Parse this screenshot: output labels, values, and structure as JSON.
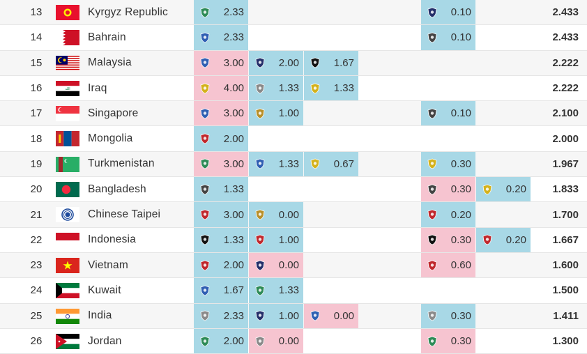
{
  "rows": [
    {
      "rank": "13",
      "country": "Kyrgyz Republic",
      "flag": "kyrgyz-flag",
      "left": [
        {
          "v": "2.33",
          "c": "blue",
          "logo": "club-crest-green"
        },
        null,
        null
      ],
      "right": [
        {
          "v": "0.10",
          "c": "blue",
          "logo": "club-crest-navy"
        },
        null
      ],
      "total": "2.433"
    },
    {
      "rank": "14",
      "country": "Bahrain",
      "flag": "bahrain-flag",
      "left": [
        {
          "v": "2.33",
          "c": "blue",
          "logo": "club-crest-blue"
        },
        null,
        null
      ],
      "right": [
        {
          "v": "0.10",
          "c": "blue",
          "logo": "club-crest-dark"
        },
        null
      ],
      "total": "2.433"
    },
    {
      "rank": "15",
      "country": "Malaysia",
      "flag": "malaysia-flag",
      "left": [
        {
          "v": "3.00",
          "c": "pink",
          "logo": "club-crest-blue"
        },
        {
          "v": "2.00",
          "c": "blue",
          "logo": "club-crest-navy"
        },
        {
          "v": "1.67",
          "c": "blue",
          "logo": "club-crest-black"
        }
      ],
      "right": [
        null,
        null
      ],
      "total": "2.222"
    },
    {
      "rank": "16",
      "country": "Iraq",
      "flag": "iraq-flag",
      "left": [
        {
          "v": "4.00",
          "c": "pink",
          "logo": "club-crest-yellow"
        },
        {
          "v": "1.33",
          "c": "blue",
          "logo": "club-crest-white"
        },
        {
          "v": "1.33",
          "c": "blue",
          "logo": "club-crest-yellow"
        }
      ],
      "right": [
        null,
        null
      ],
      "total": "2.222"
    },
    {
      "rank": "17",
      "country": "Singapore",
      "flag": "singapore-flag",
      "left": [
        {
          "v": "3.00",
          "c": "pink",
          "logo": "club-crest-blue"
        },
        {
          "v": "1.00",
          "c": "blue",
          "logo": "club-crest-gold"
        },
        null
      ],
      "right": [
        {
          "v": "0.10",
          "c": "blue",
          "logo": "club-crest-dark"
        },
        null
      ],
      "total": "2.100"
    },
    {
      "rank": "18",
      "country": "Mongolia",
      "flag": "mongolia-flag",
      "left": [
        {
          "v": "2.00",
          "c": "blue",
          "logo": "club-crest-red"
        },
        null,
        null
      ],
      "right": [
        null,
        null
      ],
      "total": "2.000"
    },
    {
      "rank": "19",
      "country": "Turkmenistan",
      "flag": "turkmenistan-flag",
      "left": [
        {
          "v": "3.00",
          "c": "pink",
          "logo": "club-crest-green"
        },
        {
          "v": "1.33",
          "c": "blue",
          "logo": "club-crest-blue"
        },
        {
          "v": "0.67",
          "c": "blue",
          "logo": "club-crest-yellow"
        }
      ],
      "right": [
        {
          "v": "0.30",
          "c": "blue",
          "logo": "club-crest-yellow"
        },
        null
      ],
      "total": "1.967"
    },
    {
      "rank": "20",
      "country": "Bangladesh",
      "flag": "bangladesh-flag",
      "left": [
        {
          "v": "1.33",
          "c": "blue",
          "logo": "club-crest-dark"
        },
        null,
        null
      ],
      "right": [
        {
          "v": "0.30",
          "c": "pink",
          "logo": "club-crest-dark"
        },
        {
          "v": "0.20",
          "c": "blue",
          "logo": "club-crest-yellow"
        }
      ],
      "total": "1.833"
    },
    {
      "rank": "21",
      "country": "Chinese Taipei",
      "flag": "chinese-taipei-flag",
      "left": [
        {
          "v": "3.00",
          "c": "blue",
          "logo": "club-crest-red"
        },
        {
          "v": "0.00",
          "c": "blue",
          "logo": "club-crest-gold"
        },
        null
      ],
      "right": [
        {
          "v": "0.20",
          "c": "blue",
          "logo": "club-crest-red"
        },
        null
      ],
      "total": "1.700"
    },
    {
      "rank": "22",
      "country": "Indonesia",
      "flag": "indonesia-flag",
      "left": [
        {
          "v": "1.33",
          "c": "blue",
          "logo": "club-crest-black"
        },
        {
          "v": "1.00",
          "c": "blue",
          "logo": "club-crest-red"
        },
        null
      ],
      "right": [
        {
          "v": "0.30",
          "c": "pink",
          "logo": "club-crest-black"
        },
        {
          "v": "0.20",
          "c": "blue",
          "logo": "club-crest-red"
        }
      ],
      "total": "1.667"
    },
    {
      "rank": "23",
      "country": "Vietnam",
      "flag": "vietnam-flag",
      "left": [
        {
          "v": "2.00",
          "c": "blue",
          "logo": "club-crest-red"
        },
        {
          "v": "0.00",
          "c": "pink",
          "logo": "club-crest-navy"
        },
        null
      ],
      "right": [
        {
          "v": "0.60",
          "c": "pink",
          "logo": "club-crest-red"
        },
        null
      ],
      "total": "1.600"
    },
    {
      "rank": "24",
      "country": "Kuwait",
      "flag": "kuwait-flag",
      "left": [
        {
          "v": "1.67",
          "c": "blue",
          "logo": "club-crest-blue"
        },
        {
          "v": "1.33",
          "c": "blue",
          "logo": "club-crest-green"
        },
        null
      ],
      "right": [
        null,
        null
      ],
      "total": "1.500"
    },
    {
      "rank": "25",
      "country": "India",
      "flag": "india-flag",
      "left": [
        {
          "v": "2.33",
          "c": "blue",
          "logo": "club-crest-white"
        },
        {
          "v": "1.00",
          "c": "blue",
          "logo": "club-crest-navy"
        },
        {
          "v": "0.00",
          "c": "pink",
          "logo": "club-crest-blue"
        }
      ],
      "right": [
        {
          "v": "0.30",
          "c": "blue",
          "logo": "club-crest-white"
        },
        null
      ],
      "total": "1.411"
    },
    {
      "rank": "26",
      "country": "Jordan",
      "flag": "jordan-flag",
      "left": [
        {
          "v": "2.00",
          "c": "blue",
          "logo": "club-crest-green"
        },
        {
          "v": "0.00",
          "c": "pink",
          "logo": "club-crest-white"
        },
        null
      ],
      "right": [
        {
          "v": "0.30",
          "c": "pink",
          "logo": "club-crest-green"
        },
        null
      ],
      "total": "1.300"
    }
  ],
  "colors": {
    "blue": "#a8d8e6",
    "pink": "#f6c4d0"
  }
}
